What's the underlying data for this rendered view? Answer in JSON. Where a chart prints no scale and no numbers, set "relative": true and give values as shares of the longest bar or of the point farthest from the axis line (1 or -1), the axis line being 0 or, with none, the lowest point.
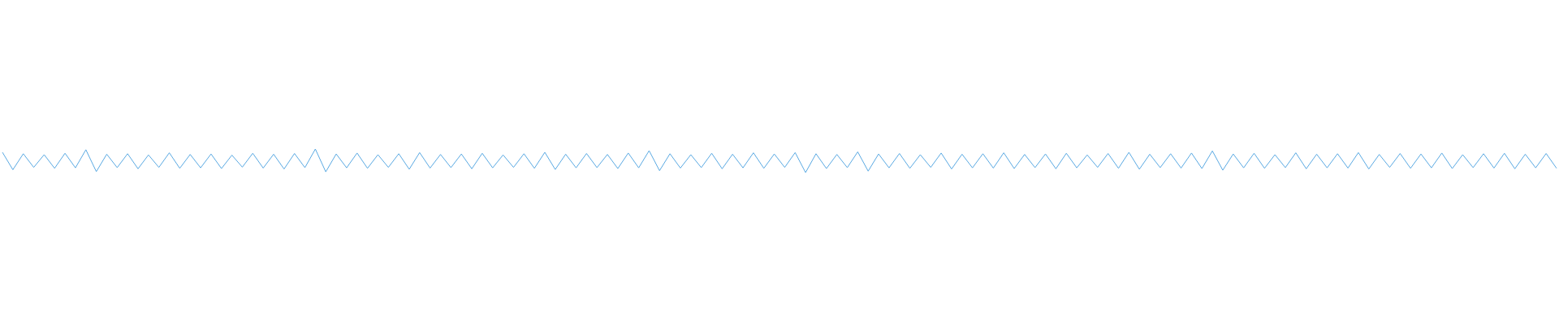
{
  "chart_data": {
    "type": "line",
    "relative": true,
    "color": "#5aa9e2",
    "categories": [
      null,
      null,
      null,
      null,
      null,
      null,
      null,
      null,
      null,
      null,
      null,
      null,
      null,
      null,
      null,
      null,
      null,
      null,
      null,
      null,
      null,
      null,
      null,
      null,
      null,
      null,
      null,
      null,
      null,
      null,
      null,
      null,
      null,
      null,
      null,
      null,
      null,
      null,
      null,
      null,
      null,
      null,
      null,
      null,
      null,
      null,
      null,
      null,
      null,
      null,
      null,
      null,
      null,
      null,
      null,
      null,
      null,
      null,
      null,
      null,
      null,
      null,
      null,
      null,
      null,
      null,
      null,
      null,
      null,
      null,
      null,
      null,
      null,
      null,
      null,
      null,
      null,
      null,
      null,
      null,
      null,
      null,
      null,
      null,
      null,
      null,
      null,
      null,
      null,
      null,
      null,
      null,
      null,
      null,
      null,
      null,
      null,
      null,
      null,
      null,
      null,
      null,
      null,
      null,
      null,
      null,
      null,
      null,
      null,
      null,
      null,
      null,
      null,
      null,
      null,
      null,
      null,
      null,
      null,
      null,
      null,
      null,
      null,
      null,
      null,
      null,
      null,
      null,
      null,
      null,
      null,
      null,
      null,
      null,
      null,
      null,
      null,
      null,
      null,
      null,
      null,
      null,
      null,
      null,
      null,
      null,
      null,
      null,
      null,
      null
    ],
    "values": [
      0.86,
      0.12,
      0.8,
      0.22,
      0.76,
      0.18,
      0.82,
      0.2,
      0.97,
      0.04,
      0.78,
      0.21,
      0.8,
      0.16,
      0.75,
      0.22,
      0.84,
      0.18,
      0.77,
      0.2,
      0.79,
      0.17,
      0.74,
      0.23,
      0.82,
      0.19,
      0.78,
      0.15,
      0.81,
      0.21,
      1.0,
      0.03,
      0.79,
      0.2,
      0.83,
      0.18,
      0.76,
      0.22,
      0.8,
      0.14,
      0.85,
      0.19,
      0.77,
      0.21,
      0.79,
      0.16,
      0.82,
      0.2,
      0.75,
      0.22,
      0.8,
      0.18,
      0.86,
      0.13,
      0.78,
      0.2,
      0.81,
      0.21,
      0.77,
      0.17,
      0.83,
      0.2,
      0.93,
      0.08,
      0.8,
      0.19,
      0.76,
      0.21,
      0.82,
      0.16,
      0.78,
      0.2,
      0.84,
      0.18,
      0.79,
      0.22,
      0.85,
      0.0,
      0.8,
      0.17,
      0.77,
      0.21,
      0.88,
      0.06,
      0.79,
      0.2,
      0.81,
      0.18,
      0.76,
      0.22,
      0.83,
      0.15,
      0.78,
      0.2,
      0.8,
      0.19,
      0.84,
      0.17,
      0.77,
      0.21,
      0.79,
      0.16,
      0.82,
      0.2,
      0.75,
      0.22,
      0.81,
      0.18,
      0.86,
      0.14,
      0.78,
      0.21,
      0.8,
      0.19,
      0.83,
      0.17,
      0.92,
      0.1,
      0.79,
      0.2,
      0.82,
      0.18,
      0.76,
      0.21,
      0.84,
      0.16,
      0.78,
      0.2,
      0.8,
      0.19,
      0.85,
      0.15,
      0.77,
      0.22,
      0.81,
      0.18,
      0.79,
      0.2,
      0.83,
      0.17,
      0.76,
      0.21,
      0.8,
      0.19,
      0.82,
      0.16,
      0.78,
      0.2,
      0.81,
      0.18
    ]
  }
}
